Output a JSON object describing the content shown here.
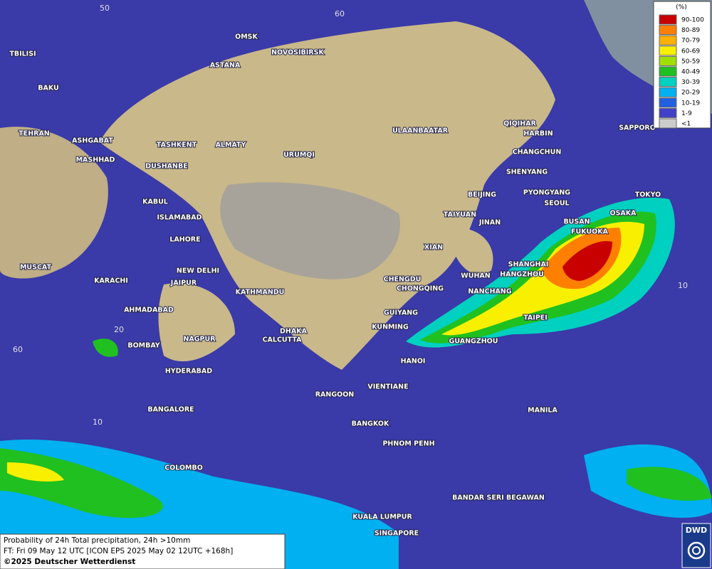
{
  "legend": {
    "unit": "(%)",
    "items": [
      {
        "label": "90-100",
        "color": "#c80000"
      },
      {
        "label": "80-89",
        "color": "#ff8000"
      },
      {
        "label": "70-79",
        "color": "#ffb000"
      },
      {
        "label": "60-69",
        "color": "#f8f000"
      },
      {
        "label": "50-59",
        "color": "#a0e000"
      },
      {
        "label": "40-49",
        "color": "#20c020"
      },
      {
        "label": "30-39",
        "color": "#00d0c0"
      },
      {
        "label": "20-29",
        "color": "#00b0f0"
      },
      {
        "label": "10-19",
        "color": "#2060e0"
      },
      {
        "label": "1-9",
        "color": "#4040c8"
      },
      {
        "label": "<1",
        "color": "#cccccc"
      }
    ]
  },
  "cities": [
    "OMSK",
    "NOVOSIBIRSK",
    "ASTANA",
    "TBILISI",
    "BAKU",
    "TEHRAN",
    "ASHGABAT",
    "MASHHAD",
    "TASHKENT",
    "ALMATY",
    "DUSHANBE",
    "URUMQI",
    "ULAANBAATAR",
    "QIQIHAR",
    "HARBIN",
    "CHANGCHUN",
    "SHENYANG",
    "SAPPORO",
    "BEIJING",
    "PYONGYANG",
    "SEOUL",
    "TOKYO",
    "OSAKA",
    "BUSAN",
    "FUKUOKA",
    "TAIYUAN",
    "JINAN",
    "KABUL",
    "ISLAMABAD",
    "LAHORE",
    "XIAN",
    "SHANGHAI",
    "HANGZHOU",
    "WUHAN",
    "NANCHANG",
    "CHENGDU",
    "CHONGQING",
    "MUSCAT",
    "KARACHI",
    "NEW DELHI",
    "JAIPUR",
    "KATHMANDU",
    "AHMADABAD",
    "GUIYANG",
    "TAIPEI",
    "KUNMING",
    "DHAKA",
    "CALCUTTA",
    "NAGPUR",
    "BOMBAY",
    "GUANGZHOU",
    "HANOI",
    "HYDERABAD",
    "RANGOON",
    "VIENTIANE",
    "MANILA",
    "BANGALORE",
    "BANGKOK",
    "PHNOM PENH",
    "COLOMBO",
    "BANDAR SERI BEGAWAN",
    "KUALA LUMPUR",
    "SINGAPORE"
  ],
  "grid_labels": [
    "50",
    "60",
    "20",
    "60",
    "10",
    "10"
  ],
  "footer": {
    "line1": "Probability of 24h Total precipitation, 24h >10mm",
    "line2": "FT: Fri 09 May 12 UTC [ICON EPS 2025 May 02 12UTC +168h]",
    "line3": "©2025 Deutscher Wetterdienst"
  },
  "logo": "DWD"
}
